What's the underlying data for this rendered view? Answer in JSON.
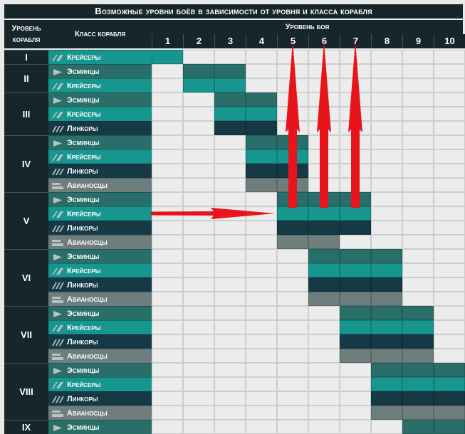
{
  "title": "Возможные уровни боёв в зависимости от уровня и класса корабля",
  "headers": {
    "ship_level": "Уровень корабля",
    "ship_class": "Класс корабля",
    "battle_level": "Уровень боя",
    "levels": [
      "1",
      "2",
      "3",
      "4",
      "5",
      "6",
      "7",
      "8",
      "9",
      "10"
    ]
  },
  "class_colors": {
    "Эсминцы": "#2a6e6a",
    "Крейсеры": "#17958f",
    "Линкоры": "#153945",
    "Авианосцы": "#6d7e7d"
  },
  "class_icons": {
    "Эсминцы": "destroyer-icon",
    "Крейсеры": "cruiser-icon",
    "Линкоры": "battleship-icon",
    "Авианосцы": "carrier-icon"
  },
  "tiers": [
    {
      "tier": "I",
      "rows": [
        {
          "class": "Крейсеры",
          "battle": [
            1,
            1
          ]
        }
      ]
    },
    {
      "tier": "II",
      "rows": [
        {
          "class": "Эсминцы",
          "battle": [
            2,
            3
          ]
        },
        {
          "class": "Крейсеры",
          "battle": [
            2,
            3
          ]
        }
      ]
    },
    {
      "tier": "III",
      "rows": [
        {
          "class": "Эсминцы",
          "battle": [
            3,
            4
          ]
        },
        {
          "class": "Крейсеры",
          "battle": [
            3,
            4
          ]
        },
        {
          "class": "Линкоры",
          "battle": [
            3,
            4
          ]
        }
      ]
    },
    {
      "tier": "IV",
      "rows": [
        {
          "class": "Эсминцы",
          "battle": [
            4,
            5
          ]
        },
        {
          "class": "Крейсеры",
          "battle": [
            4,
            5
          ]
        },
        {
          "class": "Линкоры",
          "battle": [
            4,
            5
          ]
        },
        {
          "class": "Авианосцы",
          "battle": [
            4,
            5
          ]
        }
      ]
    },
    {
      "tier": "V",
      "rows": [
        {
          "class": "Эсминцы",
          "battle": [
            5,
            7
          ]
        },
        {
          "class": "Крейсеры",
          "battle": [
            5,
            7
          ]
        },
        {
          "class": "Линкоры",
          "battle": [
            5,
            7
          ]
        },
        {
          "class": "Авианосцы",
          "battle": [
            5,
            6
          ]
        }
      ]
    },
    {
      "tier": "VI",
      "rows": [
        {
          "class": "Эсминцы",
          "battle": [
            6,
            8
          ]
        },
        {
          "class": "Крейсеры",
          "battle": [
            6,
            8
          ]
        },
        {
          "class": "Линкоры",
          "battle": [
            6,
            8
          ]
        },
        {
          "class": "Авианосцы",
          "battle": [
            6,
            8
          ]
        }
      ]
    },
    {
      "tier": "VII",
      "rows": [
        {
          "class": "Эсминцы",
          "battle": [
            7,
            9
          ]
        },
        {
          "class": "Крейсеры",
          "battle": [
            7,
            9
          ]
        },
        {
          "class": "Линкоры",
          "battle": [
            7,
            9
          ]
        },
        {
          "class": "Авианосцы",
          "battle": [
            7,
            9
          ]
        }
      ]
    },
    {
      "tier": "VIII",
      "rows": [
        {
          "class": "Эсминцы",
          "battle": [
            8,
            10
          ]
        },
        {
          "class": "Крейсеры",
          "battle": [
            8,
            10
          ]
        },
        {
          "class": "Линкоры",
          "battle": [
            8,
            10
          ]
        },
        {
          "class": "Авианосцы",
          "battle": [
            8,
            10
          ]
        }
      ]
    },
    {
      "tier": "IX",
      "rows": [
        {
          "class": "Эсминцы",
          "battle": [
            9,
            10
          ]
        }
      ]
    }
  ],
  "annotations": {
    "color": "#e8141c",
    "up_arrows_at_levels": [
      5,
      6,
      7
    ],
    "right_arrow_row": {
      "tier": "V",
      "class": "Крейсеры"
    }
  }
}
